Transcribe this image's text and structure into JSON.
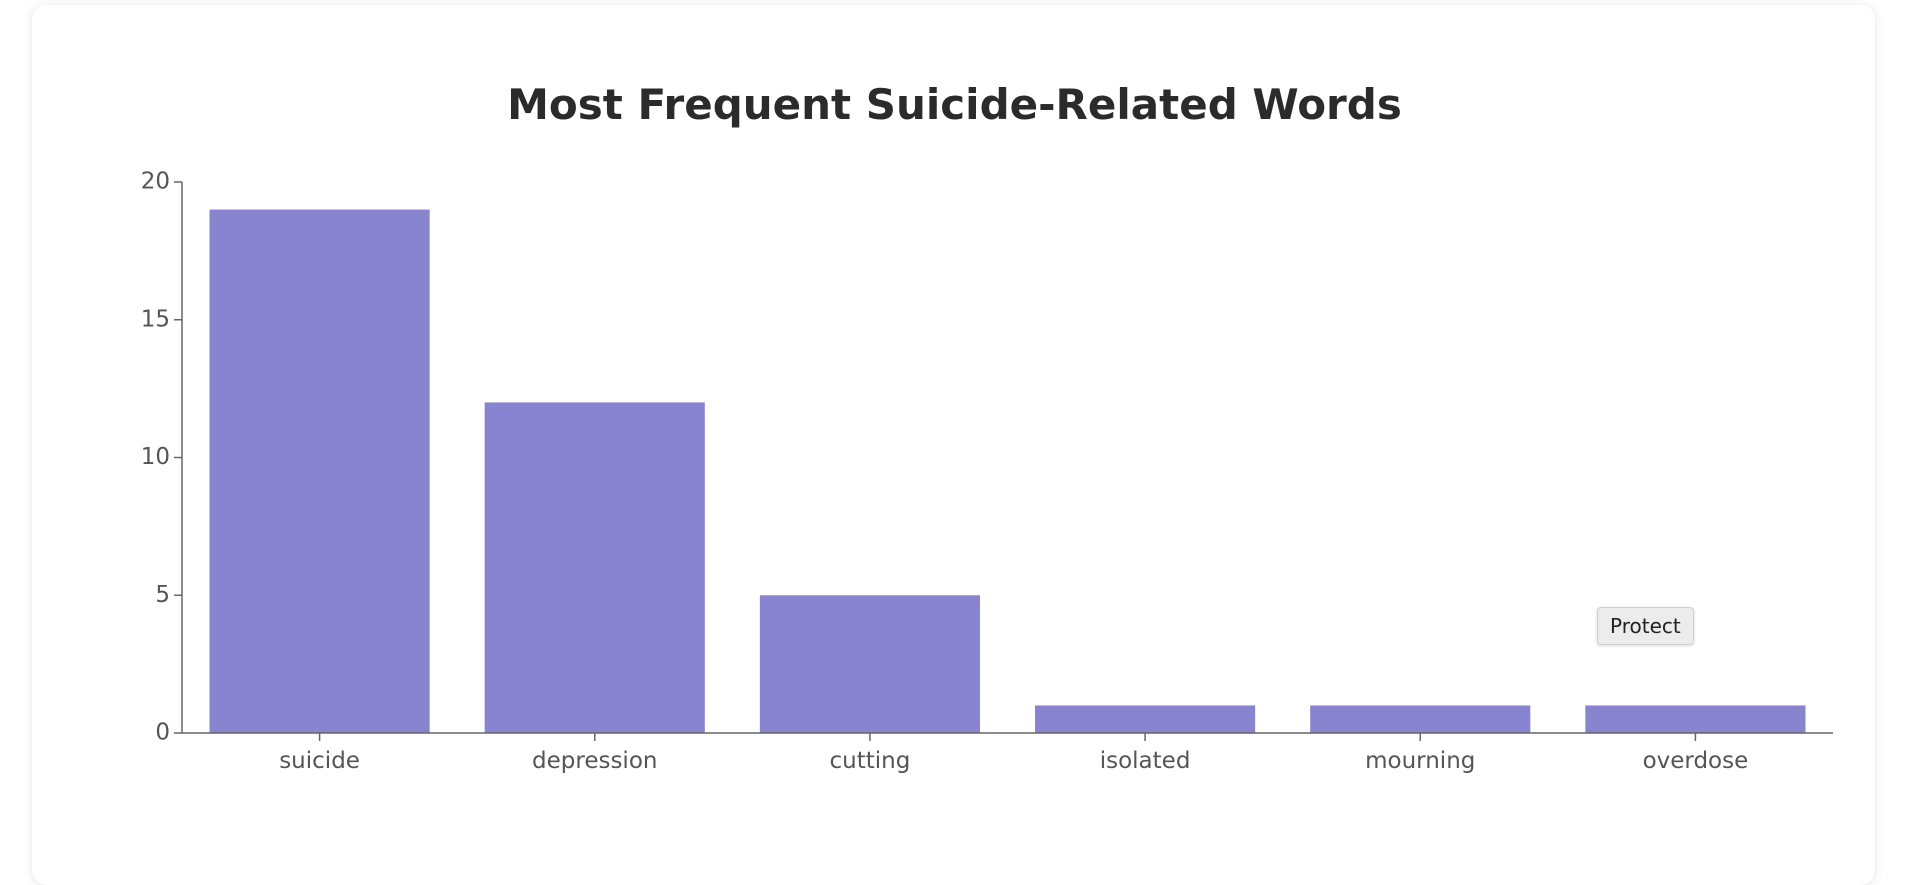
{
  "chart_data": {
    "type": "bar",
    "title": "Most Frequent Suicide-Related Words",
    "categories": [
      "suicide",
      "depression",
      "cutting",
      "isolated",
      "mourning",
      "overdose"
    ],
    "values": [
      19,
      12,
      5,
      1,
      1,
      1
    ],
    "ylim": [
      0,
      20
    ],
    "yticks": [
      0,
      5,
      10,
      15,
      20
    ],
    "xlabel": "",
    "ylabel": "",
    "grid": false,
    "colors": {
      "bar": "#8884d0",
      "axis": "#666666"
    }
  },
  "tooltip": {
    "label": "Protect"
  }
}
